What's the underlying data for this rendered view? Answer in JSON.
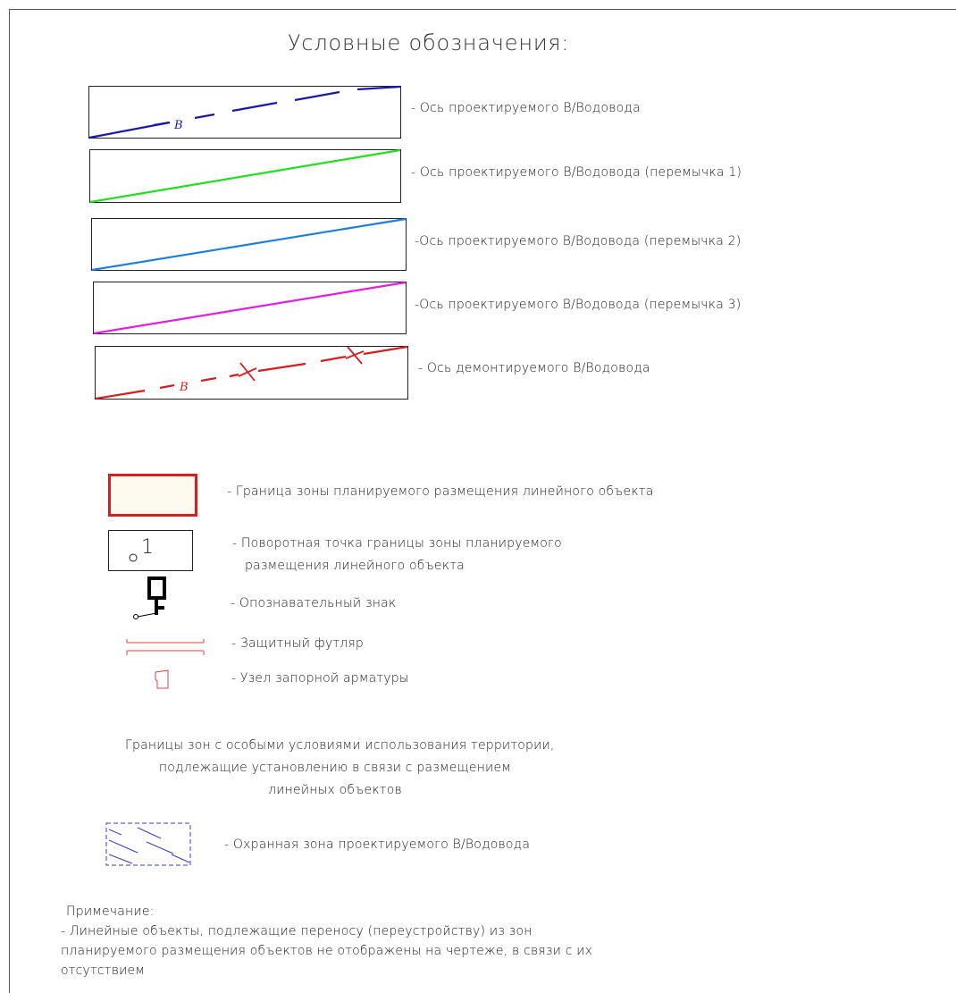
{
  "title": "Условные обозначения:",
  "colors": {
    "blue_line": "#1a1aa8",
    "green_line": "#22dd22",
    "lightblue_line": "#1e7fd8",
    "magenta_line": "#e020e0",
    "red_line": "#d81e1e",
    "zone_border": "#d62020",
    "zone_fill": "#fffaf0",
    "protect_zone": "#3b3bd0"
  },
  "lines": [
    {
      "label": "- Ось проектируемого  В/Водовода",
      "marker": "B"
    },
    {
      "label": "- Ось проектируемого В/Водовода (перемычка 1)"
    },
    {
      "label": "-Ось проектируемого В/Водовода (перемычка 2)"
    },
    {
      "label": "-Ось проектируемого В/Водовода (перемычка 3)"
    },
    {
      "label": "- Ось демонтируемого В/Водовода",
      "marker": "B"
    }
  ],
  "symbols": {
    "zone_boundary": "- Граница зоны планируемого размещения линейного объекта",
    "turn_point_line1": "- Поворотная точка границы зоны планируемого",
    "turn_point_line2": "размещения линейного объекта",
    "turn_point_number": "1",
    "marker_sign": "- Опознавательный знак",
    "casing": "- Защитный футляр",
    "valve_node": "- Узел запорной арматуры"
  },
  "special_zones": {
    "heading_line1": "Границы зон с особыми условиями использования территории,",
    "heading_line2": "подлежащие установлению в связи с размещением",
    "heading_line3": "линейных объектов",
    "protection_zone": "- Охранная зона проектируемого В/Водовода"
  },
  "note": {
    "heading": "Примечание:",
    "line1": "- Линейные объекты, подлежащие переносу (переустройству) из зон",
    "line2": "планируемого размещения объектов не отображены на чертеже, в связи с их",
    "line3": "отсутствием"
  }
}
